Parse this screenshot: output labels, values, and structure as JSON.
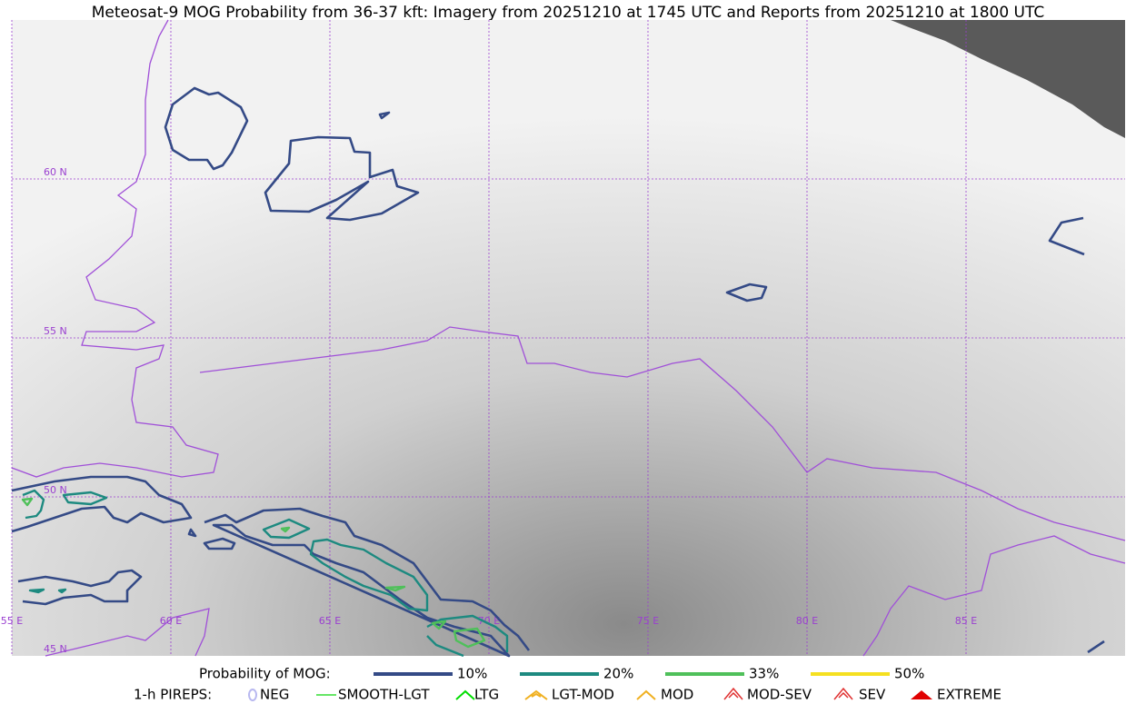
{
  "title": "Meteosat-9 MOG Probability from 36-37 kft: Imagery from 20251210 at 1745 UTC and Reports from 20251210 at 1800 UTC",
  "grid": {
    "lat_labels": [
      "60 N",
      "55 N",
      "50 N",
      "45 N"
    ],
    "lon_labels": [
      "55 E",
      "60 E",
      "65 E",
      "70 E",
      "75 E",
      "80 E",
      "85 E"
    ]
  },
  "legend": {
    "probability": {
      "title": "Probability of MOG:",
      "items": [
        {
          "label": "10%",
          "color": "#344a86"
        },
        {
          "label": "20%",
          "color": "#1d8a80"
        },
        {
          "label": "33%",
          "color": "#4fc05a"
        },
        {
          "label": "50%",
          "color": "#f5e020"
        }
      ]
    },
    "pireps": {
      "title": "1-h PIREPS:",
      "items": [
        {
          "label": "NEG",
          "color": "#b8b8f0"
        },
        {
          "label": "SMOOTH-LGT",
          "color": "#33dd33"
        },
        {
          "label": "LTG",
          "color": "#00dd00"
        },
        {
          "label": "LGT-MOD",
          "color": "#f0b020"
        },
        {
          "label": "MOD",
          "color": "#f0b020"
        },
        {
          "label": "MOD-SEV",
          "color": "#e03030"
        },
        {
          "label": "SEV",
          "color": "#e03030"
        },
        {
          "label": "EXTREME",
          "color": "#e00000"
        }
      ]
    }
  }
}
